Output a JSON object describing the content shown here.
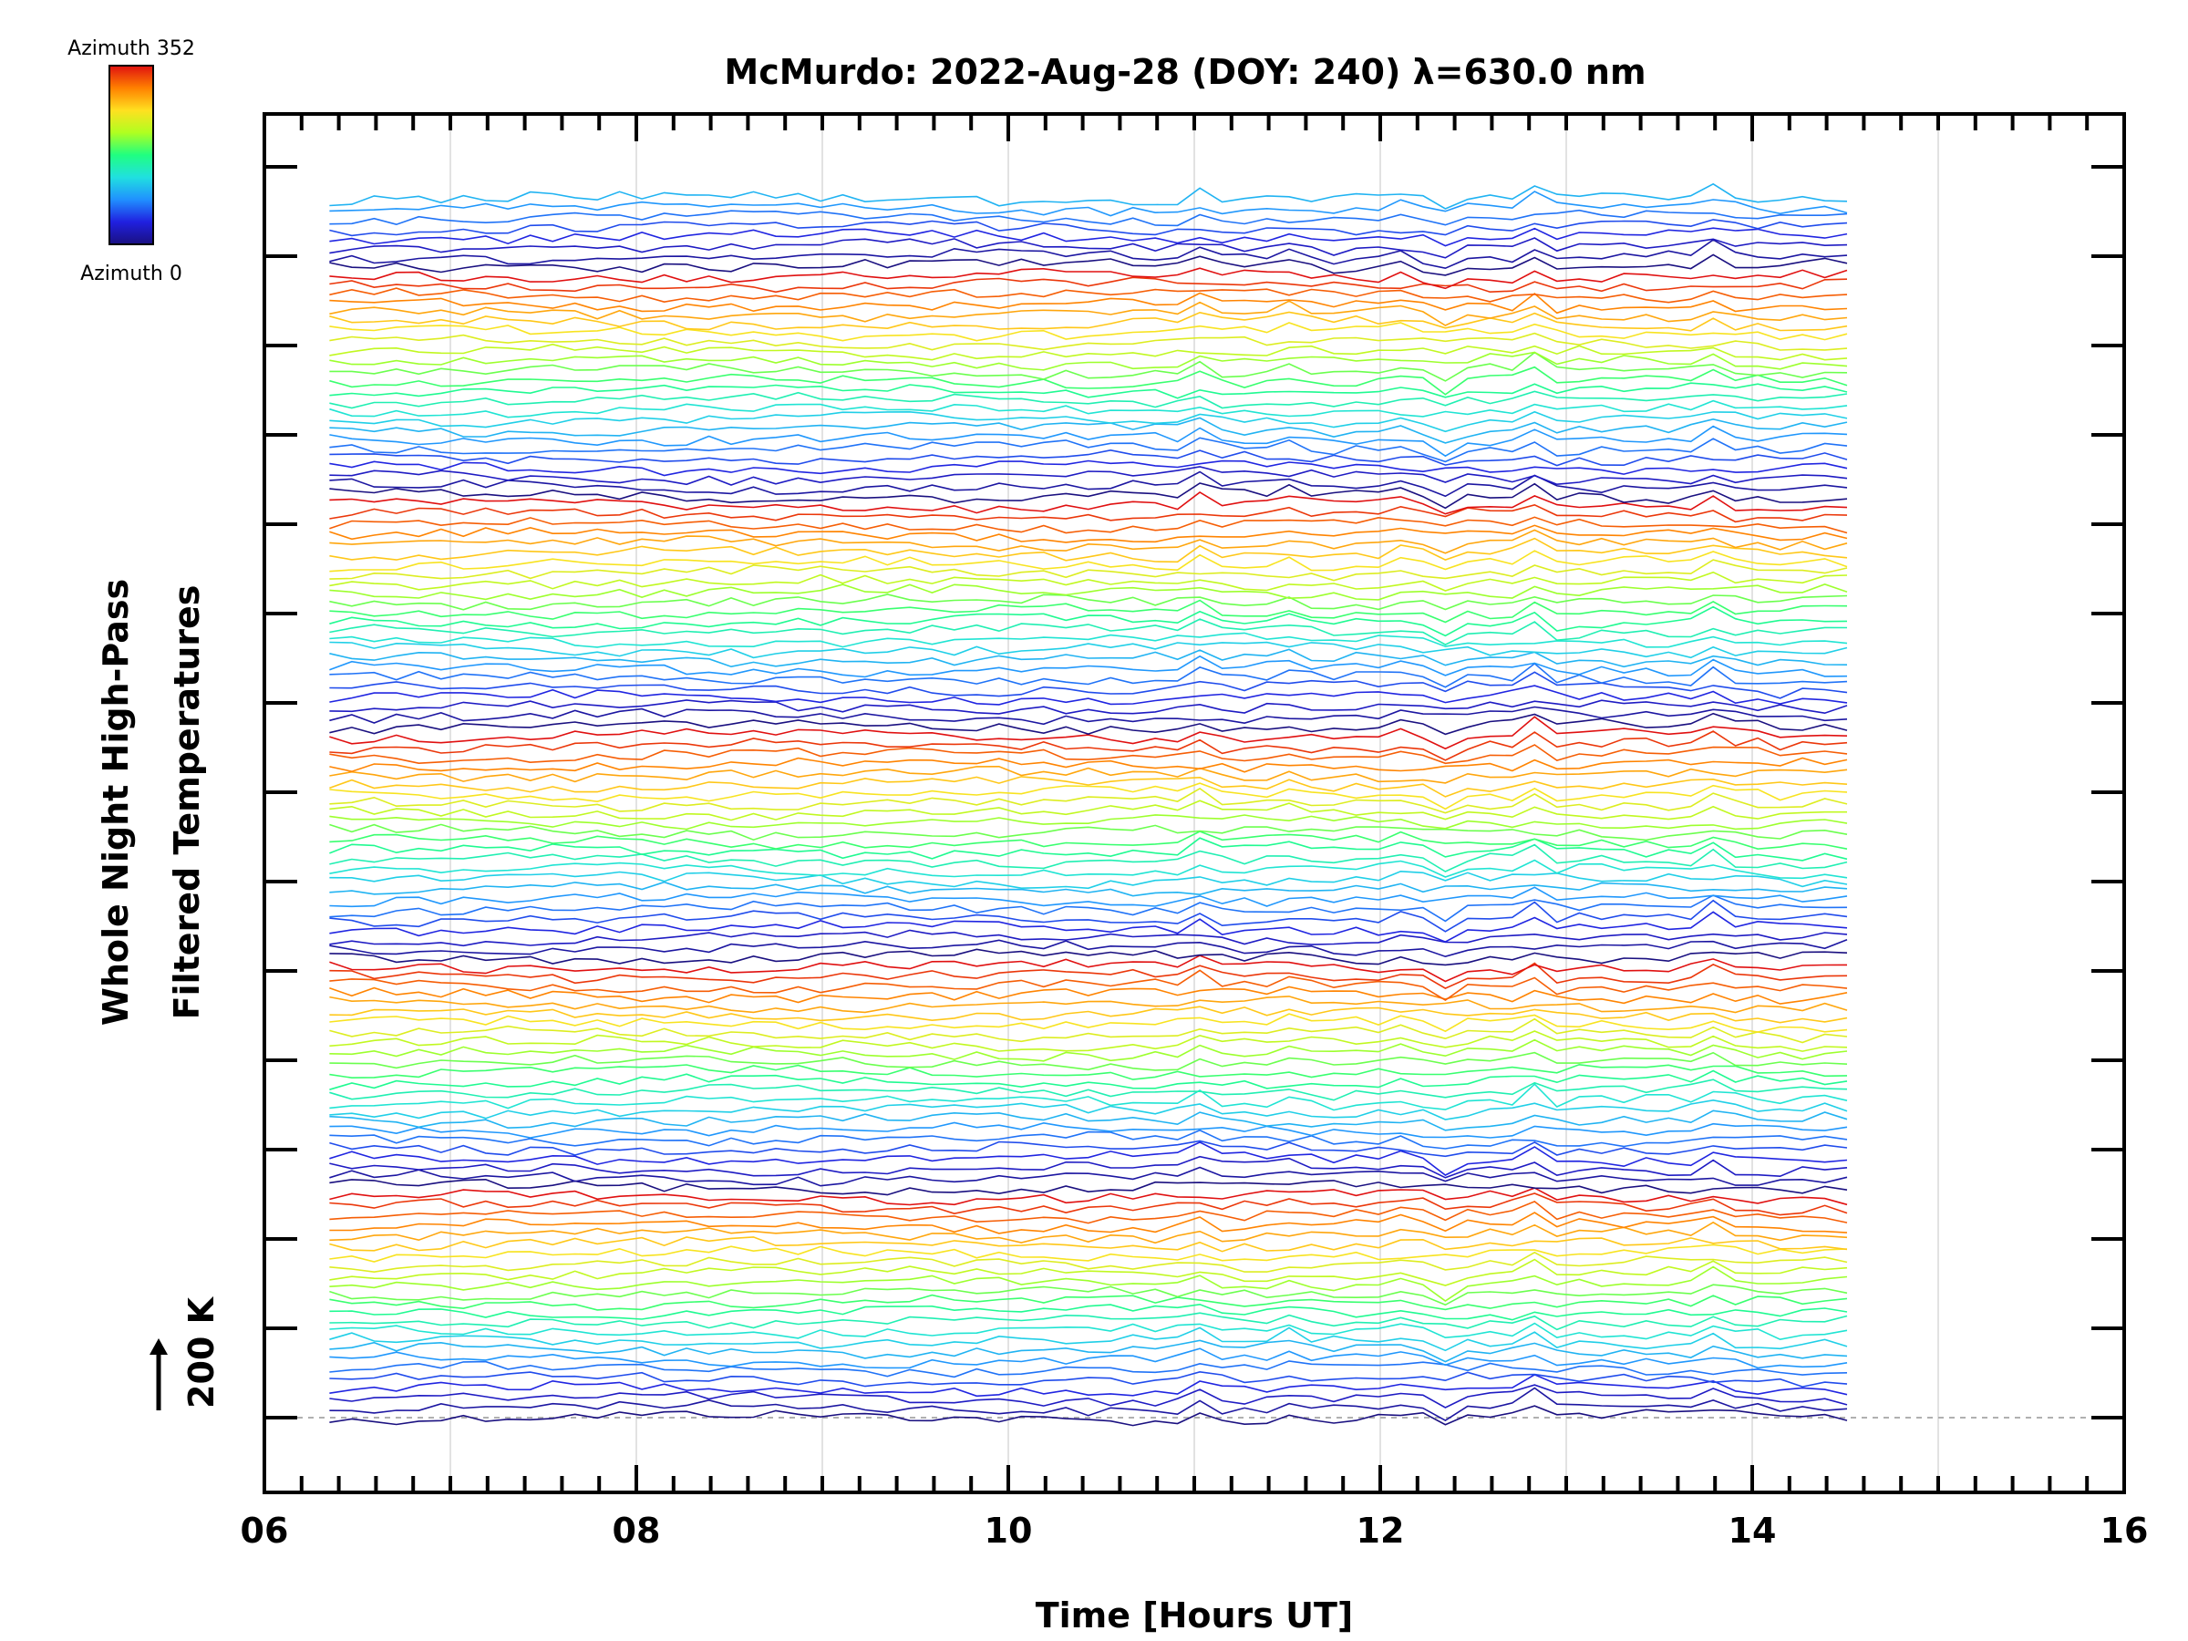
{
  "chart_data": {
    "type": "line",
    "title": "McMurdo: 2022-Aug-28 (DOY: 240) λ=630.0 nm",
    "xlabel": "Time [Hours UT]",
    "ylabel_line1": "Whole Night High-Pass",
    "ylabel_line2": "Filtered Temperatures",
    "scale_label": "200 K",
    "xlim": [
      6,
      16
    ],
    "x_ticks": [
      6,
      8,
      10,
      12,
      14,
      16
    ],
    "x_tick_labels": [
      "06",
      "08",
      "10",
      "12",
      "14",
      "16"
    ],
    "grid": "vertical lines every 1 hour; dashed baseline at the lowest trace",
    "time_range": [
      6.35,
      14.55
    ],
    "n_traces": 128,
    "traces_per_azimuth_cycle": 24,
    "vertical_offset_note": "stacked traces, each offset upward; arrow indicates 200 K",
    "colorbar": {
      "top_label": "Azimuth 352",
      "bottom_label": "Azimuth 0",
      "range": [
        0,
        352
      ],
      "colors": [
        "#1a1080",
        "#2020e0",
        "#2090ff",
        "#20e0e0",
        "#20ff80",
        "#b0ff20",
        "#ffe020",
        "#ff8000",
        "#e01010"
      ]
    }
  }
}
